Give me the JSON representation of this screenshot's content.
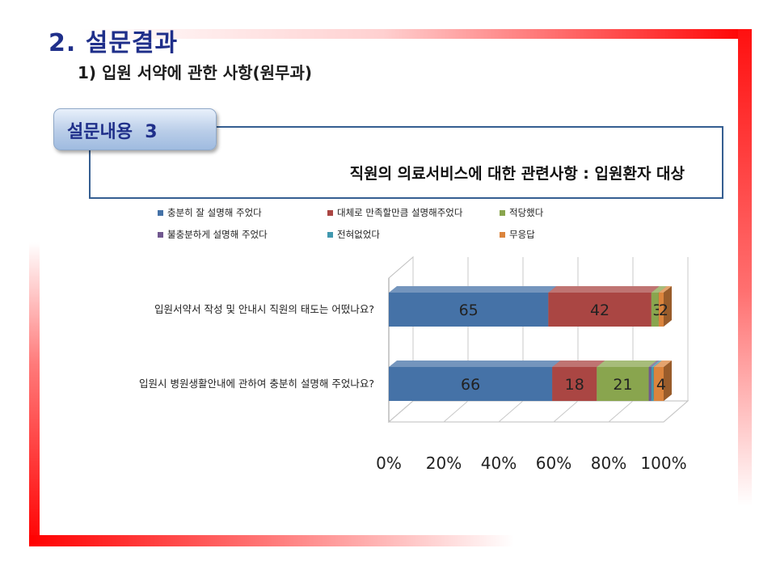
{
  "header": {
    "title": "2. 설문결과",
    "subtitle": "1) 입원 서약에 관한 사항(원무과)"
  },
  "section": {
    "badge": "설문내용  3",
    "question": "직원의 의료서비스에 대한 관련사항 : 입원환자 대상"
  },
  "colors": {
    "frame": "#ff0000",
    "title": "#1f2f8a",
    "box_border": "#355e91"
  },
  "chart_data": {
    "type": "bar",
    "orientation": "horizontal",
    "stacked": "100%",
    "three_d": true,
    "categories": [
      "입원서약서 작성 및 안내시 직원의 태도는 어떴나요?",
      "입원시 병원생활안내에 관하여 충분히 설명해 주었나요?"
    ],
    "series": [
      {
        "name": "충분히 잘 설명해 주었다",
        "color": "#4572a7",
        "values": [
          65,
          66
        ]
      },
      {
        "name": "대체로 만족할만큼 설명해주었다",
        "color": "#aa4643",
        "values": [
          42,
          18
        ]
      },
      {
        "name": "적당했다",
        "color": "#89a54e",
        "values": [
          3,
          21
        ]
      },
      {
        "name": "불충분하게 설명해 주었다",
        "color": "#71588f",
        "values": [
          0,
          1
        ]
      },
      {
        "name": "전혀없었다",
        "color": "#4198af",
        "values": [
          0,
          1
        ]
      },
      {
        "name": "무응답",
        "color": "#db843d",
        "values": [
          2,
          4
        ]
      }
    ],
    "data_labels": [
      [
        "65",
        "42",
        "3",
        "",
        "",
        "2"
      ],
      [
        "66",
        "18",
        "21",
        "",
        "",
        "4"
      ]
    ],
    "x_ticks": [
      "0%",
      "20%",
      "40%",
      "60%",
      "80%",
      "100%"
    ],
    "xlim": [
      0,
      100
    ],
    "grid": true,
    "legend_position": "top"
  }
}
